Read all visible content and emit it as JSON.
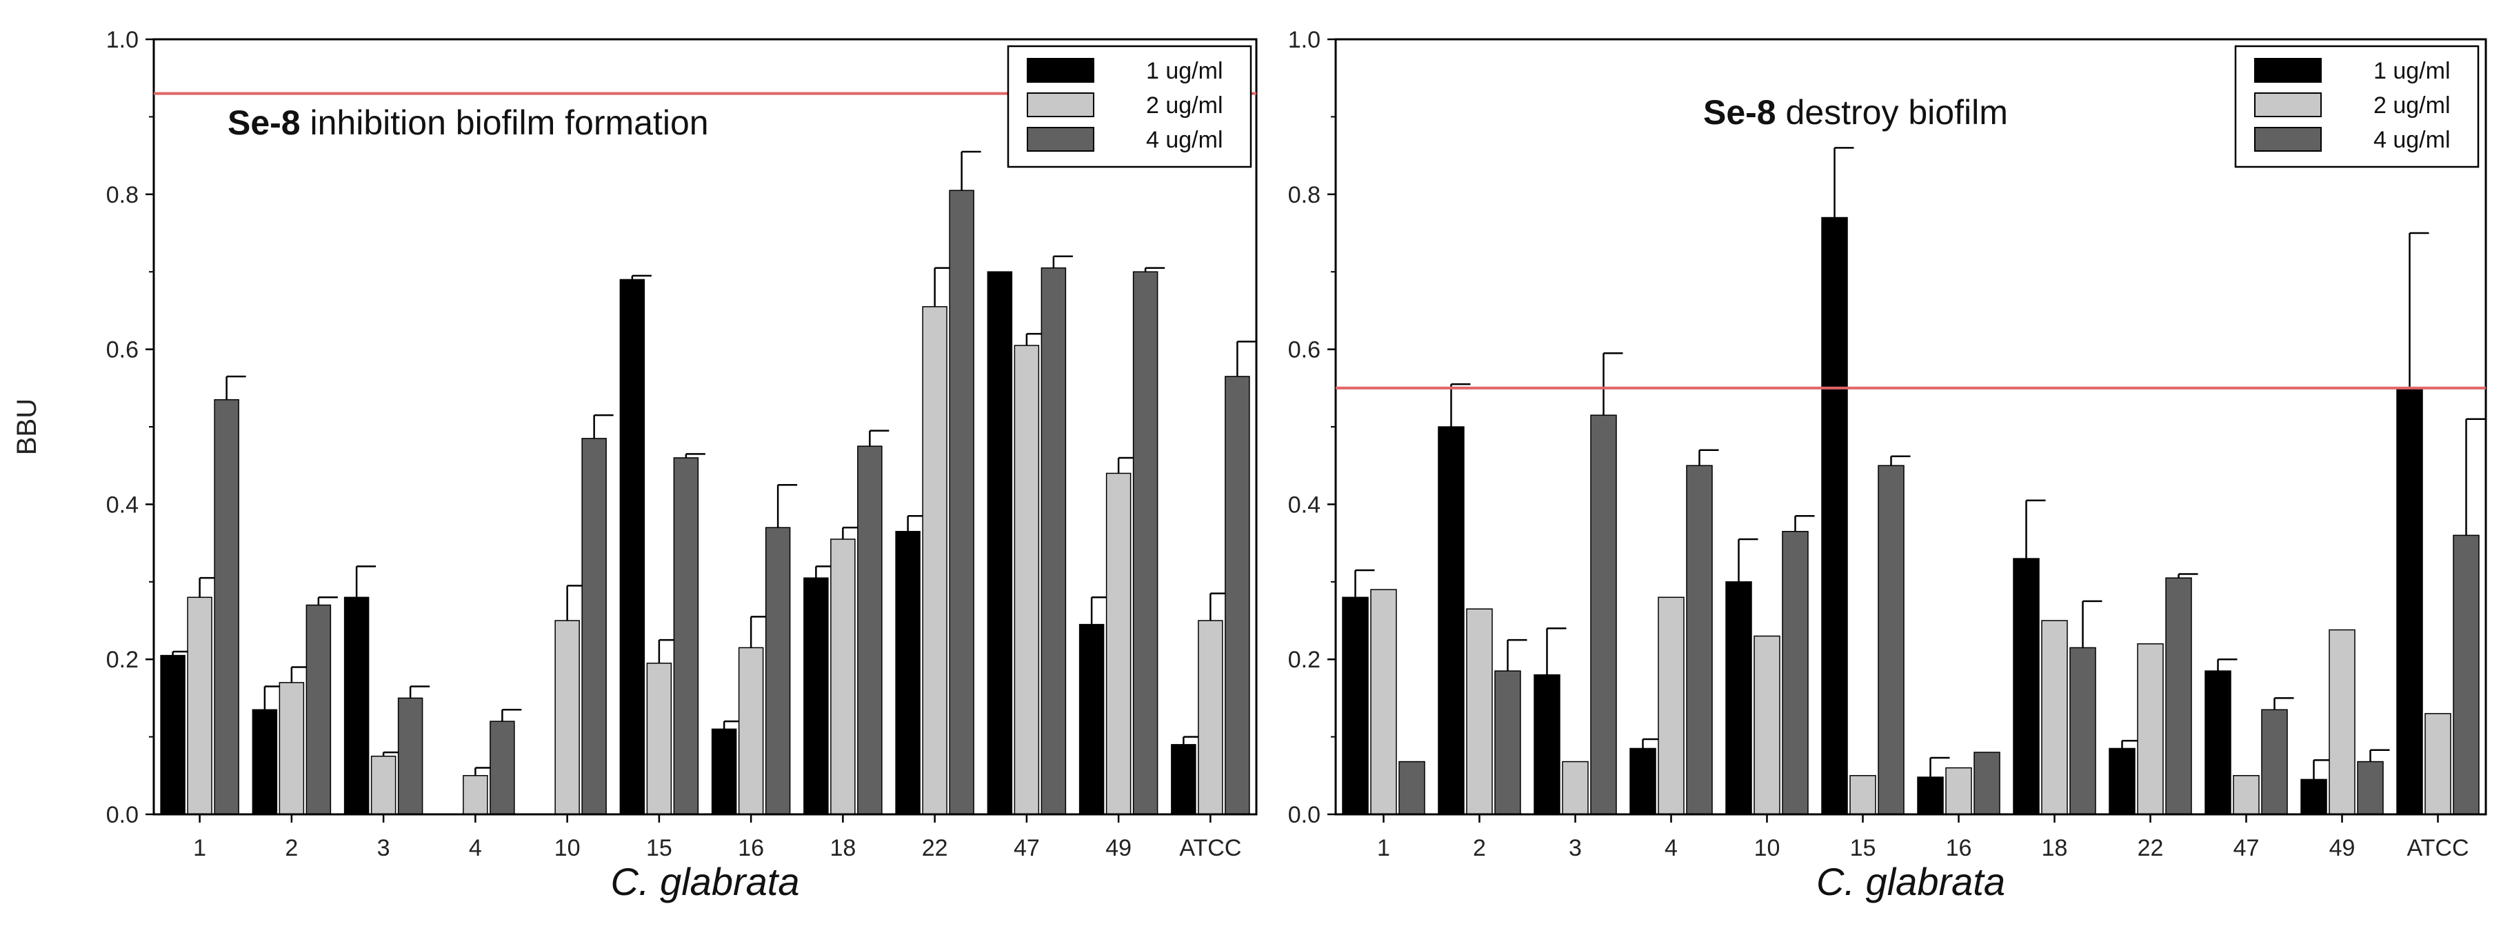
{
  "chart_data": [
    {
      "type": "bar",
      "title": "",
      "annotation_bold": "Se-8",
      "annotation_rest": " inhibition biofilm formation",
      "xlabel": "C. glabrata",
      "ylabel": "BBU",
      "ylim": [
        0,
        1.0
      ],
      "yticks": [
        "0.0",
        "0.2",
        "0.4",
        "0.6",
        "0.8",
        "1.0"
      ],
      "reference_line": 0.93,
      "categories": [
        "1",
        "2",
        "3",
        "4",
        "10",
        "15",
        "16",
        "18",
        "22",
        "47",
        "49",
        "ATCC"
      ],
      "series": [
        {
          "name": "1 ug/ml",
          "color": "#000000",
          "values": [
            0.205,
            0.135,
            0.28,
            0.0,
            0.0,
            0.69,
            0.11,
            0.305,
            0.365,
            0.7,
            0.245,
            0.09
          ],
          "errors": [
            0.005,
            0.03,
            0.04,
            0.0,
            0.0,
            0.005,
            0.01,
            0.015,
            0.02,
            0.0,
            0.035,
            0.01
          ]
        },
        {
          "name": "2 ug/ml",
          "color": "#c8c8c8",
          "values": [
            0.28,
            0.17,
            0.075,
            0.05,
            0.25,
            0.195,
            0.215,
            0.355,
            0.655,
            0.605,
            0.44,
            0.25
          ],
          "errors": [
            0.025,
            0.02,
            0.005,
            0.01,
            0.045,
            0.03,
            0.04,
            0.015,
            0.05,
            0.015,
            0.02,
            0.035
          ]
        },
        {
          "name": "4 ug/ml",
          "color": "#616161",
          "values": [
            0.535,
            0.27,
            0.15,
            0.12,
            0.485,
            0.46,
            0.37,
            0.475,
            0.805,
            0.705,
            0.7,
            0.565
          ],
          "errors": [
            0.03,
            0.01,
            0.015,
            0.015,
            0.03,
            0.005,
            0.055,
            0.02,
            0.05,
            0.015,
            0.005,
            0.045
          ]
        }
      ]
    },
    {
      "type": "bar",
      "title": "",
      "annotation_bold": "Se-8",
      "annotation_rest": " destroy biofilm",
      "xlabel": "C. glabrata",
      "ylabel": "",
      "ylim": [
        0,
        1.0
      ],
      "yticks": [
        "0.0",
        "0.2",
        "0.4",
        "0.6",
        "0.8",
        "1.0"
      ],
      "reference_line": 0.55,
      "categories": [
        "1",
        "2",
        "3",
        "4",
        "10",
        "15",
        "16",
        "18",
        "22",
        "47",
        "49",
        "ATCC"
      ],
      "series": [
        {
          "name": "1 ug/ml",
          "color": "#000000",
          "values": [
            0.28,
            0.5,
            0.18,
            0.085,
            0.3,
            0.77,
            0.048,
            0.33,
            0.085,
            0.185,
            0.045,
            0.55
          ],
          "errors": [
            0.035,
            0.055,
            0.06,
            0.012,
            0.055,
            0.09,
            0.025,
            0.075,
            0.01,
            0.015,
            0.025,
            0.2
          ]
        },
        {
          "name": "2 ug/ml",
          "color": "#c8c8c8",
          "values": [
            0.29,
            0.265,
            0.068,
            0.28,
            0.23,
            0.05,
            0.06,
            0.25,
            0.22,
            0.05,
            0.238,
            0.13
          ]
        },
        {
          "name": "4 ug/ml",
          "color": "#616161",
          "values": [
            0.068,
            0.185,
            0.515,
            0.45,
            0.365,
            0.45,
            0.08,
            0.215,
            0.305,
            0.135,
            0.068,
            0.36
          ],
          "errors": [
            0.0,
            0.04,
            0.08,
            0.02,
            0.02,
            0.012,
            0.0,
            0.06,
            0.005,
            0.015,
            0.015,
            0.15
          ]
        }
      ]
    }
  ]
}
